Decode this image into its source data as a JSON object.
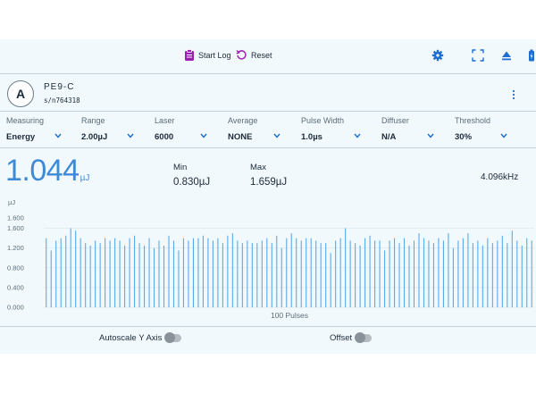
{
  "toolbar": {
    "start_log_label": "Start Log",
    "reset_label": "Reset",
    "accent_color": "#9b1fb0",
    "icon_color": "#1b6fd1",
    "icons": [
      "clipboard-icon",
      "reset-icon",
      "gear-icon",
      "fullscreen-icon",
      "eject-icon",
      "battery-icon"
    ]
  },
  "device": {
    "avatar_letter": "A",
    "model": "PE9-C",
    "serial": "s/n764318"
  },
  "settings": [
    {
      "label": "Measuring",
      "value": "Energy"
    },
    {
      "label": "Range",
      "value": "2.00µJ"
    },
    {
      "label": "Laser",
      "value": "6000"
    },
    {
      "label": "Average",
      "value": "NONE"
    },
    {
      "label": "Pulse Width",
      "value": "1.0µs"
    },
    {
      "label": "Diffuser",
      "value": "N/A"
    },
    {
      "label": "Threshold",
      "value": "30%"
    }
  ],
  "reading": {
    "value": "1.044",
    "unit": "µJ",
    "min_label": "Min",
    "min_value": "0.830µJ",
    "max_label": "Max",
    "max_value": "1.659µJ",
    "frequency": "4.096kHz"
  },
  "chart_data": {
    "type": "bar",
    "ylabel": "µJ",
    "xlabel": "100 Pulses",
    "ylim": [
      0,
      1.7
    ],
    "yticks": [
      "0.000",
      "0.400",
      "0.800",
      "1.200",
      "1.600"
    ],
    "extra_tick": "1.600",
    "bar_color": "#5aa9ea",
    "values": [
      1.4,
      1.15,
      1.35,
      1.4,
      1.45,
      1.6,
      1.55,
      1.4,
      1.3,
      1.25,
      1.35,
      1.3,
      1.4,
      1.35,
      1.4,
      1.35,
      1.25,
      1.4,
      1.45,
      1.3,
      1.25,
      1.4,
      1.2,
      1.35,
      1.25,
      1.45,
      1.35,
      1.15,
      1.4,
      1.35,
      1.4,
      1.4,
      1.45,
      1.4,
      1.35,
      1.4,
      1.3,
      1.45,
      1.5,
      1.35,
      1.3,
      1.35,
      1.3,
      1.3,
      1.35,
      1.4,
      1.3,
      1.45,
      1.2,
      1.4,
      1.5,
      1.4,
      1.35,
      1.4,
      1.4,
      1.35,
      1.3,
      1.3,
      1.1,
      1.35,
      1.4,
      1.6,
      1.35,
      1.3,
      1.25,
      1.4,
      1.45,
      1.35,
      1.35,
      1.15,
      1.35,
      1.4,
      1.3,
      1.4,
      1.25,
      1.35,
      1.5,
      1.4,
      1.35,
      1.3,
      1.4,
      1.35,
      1.5,
      1.2,
      1.35,
      1.4,
      1.5,
      1.3,
      1.35,
      1.25,
      1.4,
      1.3,
      1.35,
      1.45,
      1.3,
      1.55,
      1.35,
      1.25,
      1.4,
      1.35
    ]
  },
  "footer": {
    "autoscale_label": "Autoscale Y Axis",
    "offset_label": "Offset"
  }
}
